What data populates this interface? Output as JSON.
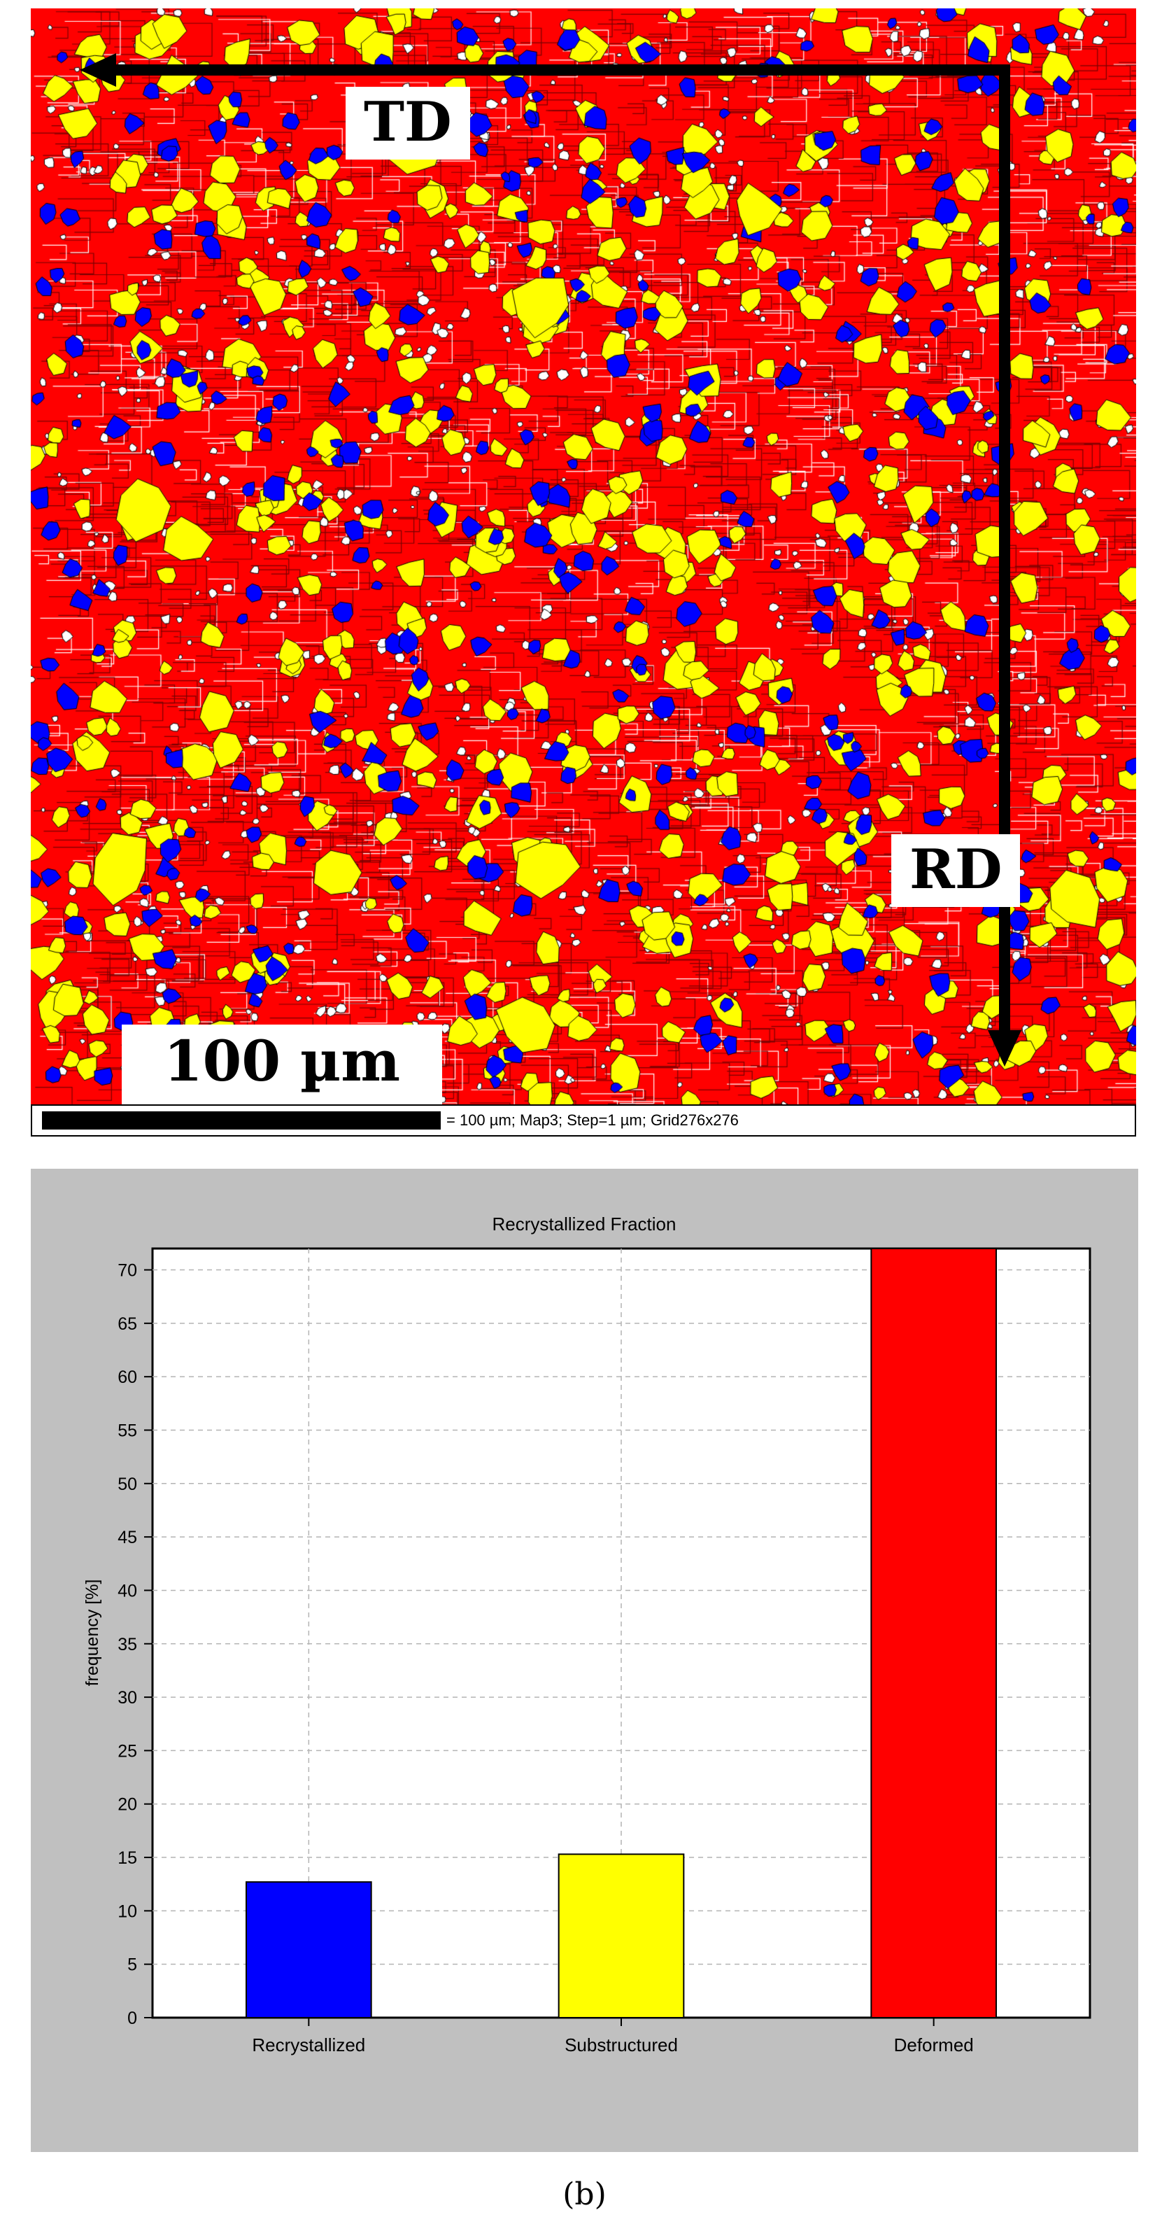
{
  "map": {
    "td_label": "TD",
    "rd_label": "RD",
    "scale_label": "100 µm",
    "caption": "= 100 µm; Map3; Step=1 µm; Grid276x276",
    "colors": {
      "recrystallized": "#0000ff",
      "substructured": "#ffff00",
      "deformed": "#ff0000",
      "unindexed": "#ffffff"
    }
  },
  "chart_data": {
    "type": "bar",
    "title": "Recrystallized Fraction",
    "xlabel": "",
    "ylabel": "frequency [%]",
    "categories": [
      "Recrystallized",
      "Substructured",
      "Deformed"
    ],
    "values": [
      12.7,
      15.3,
      72.0
    ],
    "colors": [
      "#0000ff",
      "#ffff00",
      "#ff0000"
    ],
    "ylim": [
      0,
      72
    ],
    "yticks": [
      0,
      5,
      10,
      15,
      20,
      25,
      30,
      35,
      40,
      45,
      50,
      55,
      60,
      65,
      70
    ],
    "grid": true,
    "legend": "none"
  },
  "panel_label": "(b)"
}
